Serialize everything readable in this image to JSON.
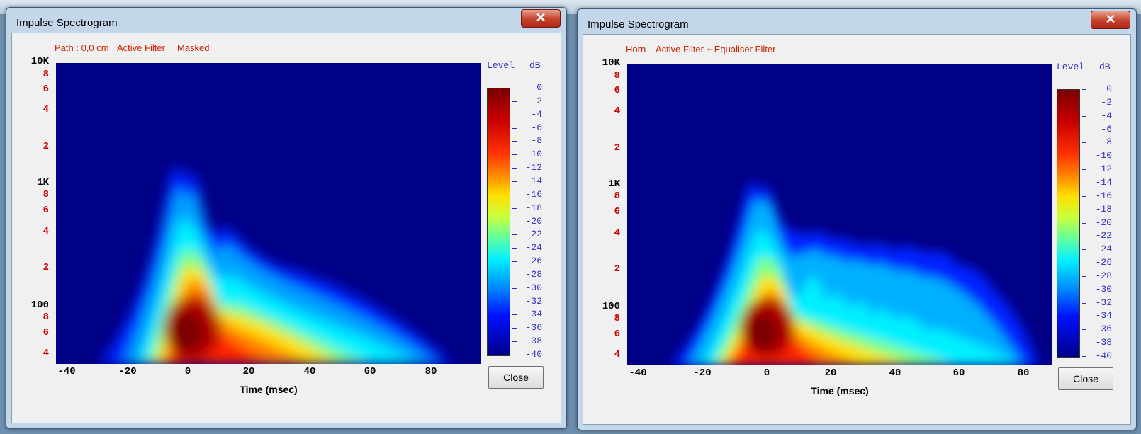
{
  "windows": [
    {
      "title": "Impulse Spectrogram",
      "close_x": "✕",
      "subtitle_parts": [
        "Path : 0,0 cm",
        "Active Filter",
        "Masked"
      ],
      "close_button": "Close",
      "variant": "masked"
    },
    {
      "title": "Impulse Spectrogram",
      "close_x": "✕",
      "subtitle_parts": [
        "Horn",
        "Active Filter + Equaliser Filter"
      ],
      "close_button": "Close",
      "variant": "equalised"
    }
  ],
  "chart_data": [
    {
      "type": "heatmap",
      "title": "Path : 0,0 cm   Active Filter   Masked",
      "xlabel": "Time (msec)",
      "ylabel": "",
      "x_ticks": [
        "-40",
        "-20",
        "0",
        "20",
        "40",
        "60",
        "80"
      ],
      "y_ticks": [
        "10K",
        "8",
        "6",
        "4",
        "2",
        "1K",
        "8",
        "6",
        "4",
        "2",
        "100",
        "8",
        "6",
        "4"
      ],
      "xlim": [
        -42,
        98
      ],
      "ylim": [
        40,
        10000
      ],
      "yscale": "log",
      "colorbar": {
        "title": "Level",
        "unit": "dB",
        "ticks": [
          "0",
          "-2",
          "-4",
          "-6",
          "-8",
          "-10",
          "-12",
          "-14",
          "-16",
          "-18",
          "-20",
          "-22",
          "-24",
          "-26",
          "-28",
          "-30",
          "-32",
          "-34",
          "-36",
          "-38",
          "-40"
        ],
        "range": [
          -40,
          0
        ]
      }
    },
    {
      "type": "heatmap",
      "title": "Horn   Active Filter + Equaliser Filter",
      "xlabel": "Time (msec)",
      "ylabel": "",
      "x_ticks": [
        "-40",
        "-20",
        "0",
        "20",
        "40",
        "60",
        "80"
      ],
      "y_ticks": [
        "10K",
        "8",
        "6",
        "4",
        "2",
        "1K",
        "8",
        "6",
        "4",
        "2",
        "100",
        "8",
        "6",
        "4"
      ],
      "xlim": [
        -44,
        86
      ],
      "ylim": [
        40,
        10000
      ],
      "yscale": "log",
      "colorbar": {
        "title": "Level",
        "unit": "dB",
        "ticks": [
          "0",
          "-2",
          "-4",
          "-6",
          "-8",
          "-10",
          "-12",
          "-14",
          "-16",
          "-18",
          "-20",
          "-22",
          "-24",
          "-26",
          "-28",
          "-30",
          "-32",
          "-34",
          "-36",
          "-38",
          "-40"
        ],
        "range": [
          -40,
          0
        ]
      }
    }
  ]
}
